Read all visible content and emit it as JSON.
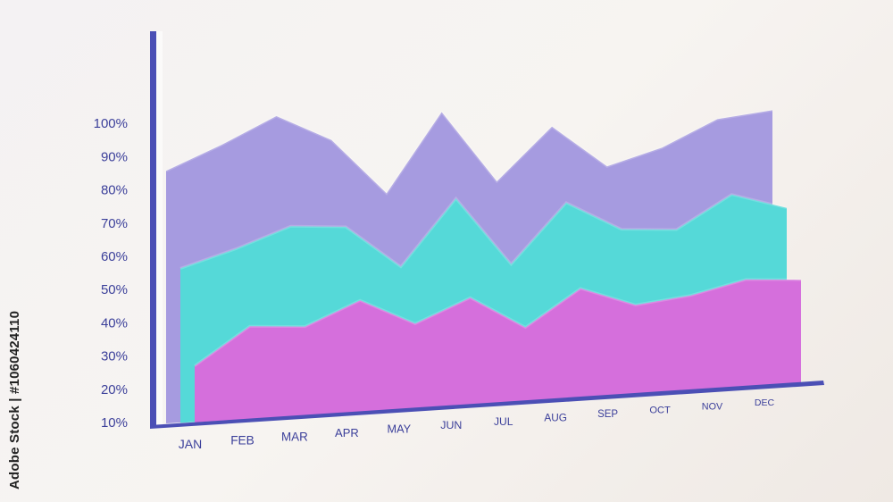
{
  "watermark_text": "Adobe Stock | #1060424110",
  "chart_data": {
    "type": "area",
    "stacked": true,
    "title": "",
    "xlabel": "",
    "ylabel": "",
    "categories": [
      "JAN",
      "FEB",
      "MAR",
      "APR",
      "MAY",
      "JUN",
      "JUL",
      "AUG",
      "SEP",
      "OCT",
      "NOV",
      "DEC"
    ],
    "ytick_labels": [
      "10%",
      "20%",
      "30%",
      "40%",
      "50%",
      "60%",
      "70%",
      "80%",
      "90%",
      "100%"
    ],
    "ylim": [
      10,
      100
    ],
    "grid": false,
    "legend": "none",
    "series": [
      {
        "color": "#d56fdc",
        "values": [
          28,
          39,
          38,
          45,
          37,
          44,
          34,
          45,
          39,
          41,
          45,
          44
        ]
      },
      {
        "color": "#55d9d8",
        "values": [
          57,
          62,
          68,
          67,
          54,
          74,
          53,
          71,
          62,
          61,
          71,
          66
        ]
      },
      {
        "color": "#a69be0",
        "values": [
          86,
          93,
          101,
          93,
          76,
          100,
          78,
          94,
          81,
          86,
          94,
          96
        ]
      }
    ],
    "axis_color": "#4b4fb5"
  }
}
